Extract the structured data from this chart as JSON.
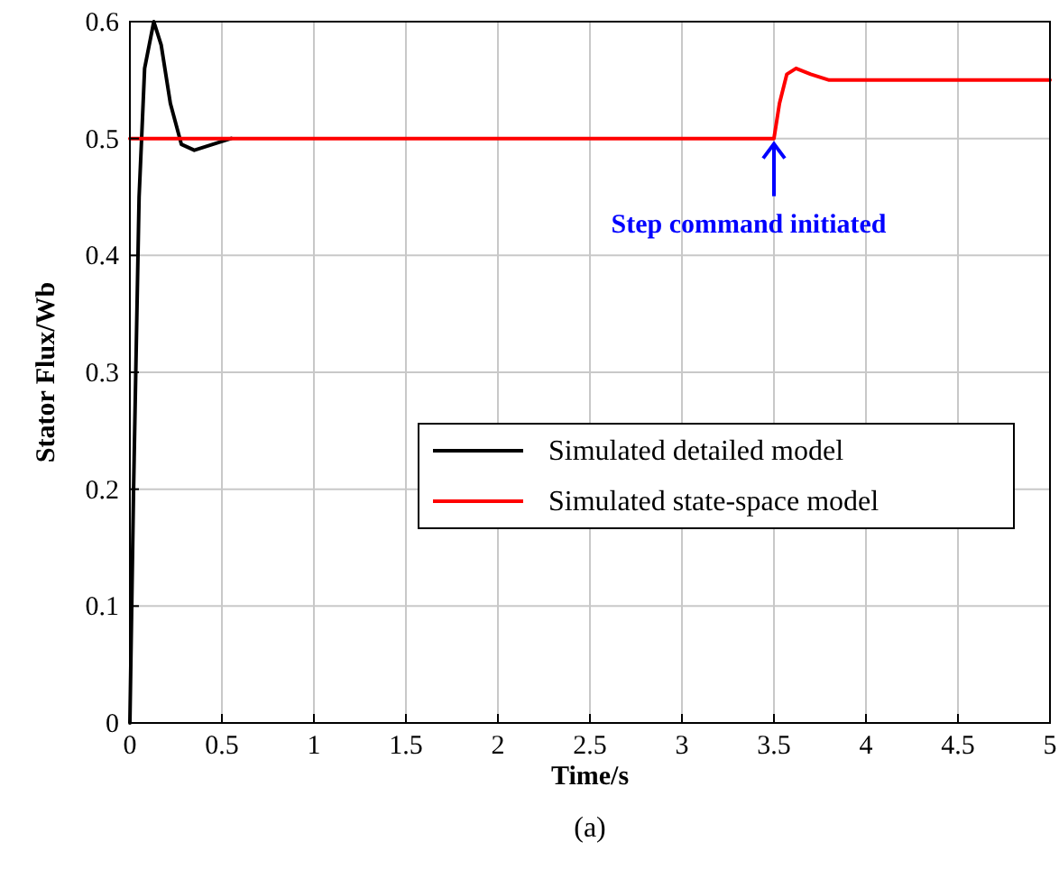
{
  "chart_data": {
    "type": "line",
    "xlabel": "Time/s",
    "ylabel": "Stator Flux/Wb",
    "xlim": [
      0,
      5
    ],
    "ylim": [
      0,
      0.6
    ],
    "xticks": [
      0,
      0.5,
      1,
      1.5,
      2,
      2.5,
      3,
      3.5,
      4,
      4.5,
      5
    ],
    "yticks": [
      0,
      0.1,
      0.2,
      0.3,
      0.4,
      0.5,
      0.6
    ],
    "grid": true,
    "legend": "right",
    "line_style": "solid",
    "marker": "none",
    "series": [
      {
        "name": "Simulated detailed model",
        "color": "#000000",
        "x": [
          0,
          0.02,
          0.05,
          0.08,
          0.13,
          0.17,
          0.22,
          0.28,
          0.35,
          0.45,
          0.55
        ],
        "values": [
          0,
          0.2,
          0.45,
          0.56,
          0.6,
          0.58,
          0.53,
          0.495,
          0.49,
          0.495,
          0.5
        ]
      },
      {
        "name": "Simulated state-space model",
        "color": "#ff0000",
        "x": [
          0,
          3.5,
          3.53,
          3.57,
          3.62,
          3.7,
          3.8,
          5
        ],
        "values": [
          0.5,
          0.5,
          0.53,
          0.555,
          0.56,
          0.555,
          0.55,
          0.55
        ]
      }
    ],
    "annotations": [
      {
        "text": "Step command initiated",
        "x": 3.5,
        "y": 0.5
      },
      "(a)"
    ]
  }
}
